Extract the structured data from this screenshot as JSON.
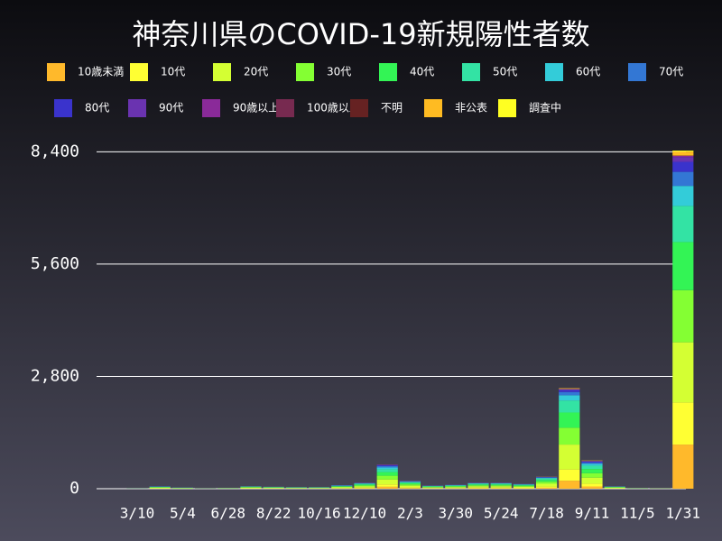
{
  "chart_data": {
    "type": "bar",
    "stacked": true,
    "title": "神奈川県のCOVID-19新規陽性者数",
    "categories": [
      null,
      "3/10",
      null,
      "5/4",
      null,
      "6/28",
      null,
      "8/22",
      null,
      "10/16",
      null,
      "12/10",
      null,
      "2/3",
      null,
      "3/30",
      null,
      "5/24",
      null,
      "7/18",
      null,
      "9/11",
      null,
      "11/5",
      null,
      "1/31"
    ],
    "series": [
      {
        "name": "10歳未満",
        "color": "#ffb92b",
        "values": [
          0,
          0,
          5,
          2,
          1,
          2,
          5,
          4,
          3,
          3,
          7,
          12,
          48,
          16,
          6,
          8,
          12,
          12,
          10,
          24,
          200,
          56,
          5,
          1,
          1,
          1100
        ]
      },
      {
        "name": "10代",
        "color": "#ffff33",
        "values": [
          0,
          0,
          6,
          3,
          1,
          2,
          6,
          5,
          4,
          4,
          9,
          15,
          60,
          20,
          8,
          10,
          15,
          15,
          12,
          30,
          280,
          70,
          6,
          2,
          1,
          1050
        ]
      },
      {
        "name": "20代",
        "color": "#d4ff33",
        "values": [
          0,
          1,
          12,
          6,
          2,
          4,
          15,
          12,
          8,
          8,
          18,
          30,
          120,
          40,
          16,
          20,
          32,
          32,
          26,
          70,
          620,
          150,
          12,
          3,
          2,
          1500
        ]
      },
      {
        "name": "30代",
        "color": "#84ff33",
        "values": [
          0,
          1,
          10,
          5,
          2,
          3,
          10,
          8,
          7,
          7,
          14,
          24,
          96,
          32,
          13,
          16,
          24,
          24,
          19,
          50,
          420,
          110,
          10,
          2,
          2,
          1300
        ]
      },
      {
        "name": "40代",
        "color": "#33f455",
        "values": [
          0,
          1,
          9,
          5,
          1,
          3,
          9,
          8,
          6,
          6,
          14,
          23,
          90,
          30,
          12,
          15,
          23,
          23,
          18,
          45,
          380,
          105,
          9,
          2,
          1,
          1200
        ]
      },
      {
        "name": "50代",
        "color": "#33e3a4",
        "values": [
          0,
          1,
          7,
          4,
          1,
          2,
          7,
          6,
          5,
          5,
          11,
          18,
          72,
          24,
          10,
          12,
          18,
          18,
          14,
          36,
          300,
          84,
          7,
          2,
          1,
          900
        ]
      },
      {
        "name": "60代",
        "color": "#33ccd9",
        "values": [
          0,
          1,
          4,
          2,
          1,
          1,
          4,
          3,
          3,
          3,
          6,
          10,
          42,
          14,
          6,
          7,
          9,
          9,
          8,
          18,
          130,
          45,
          4,
          1,
          1,
          500
        ]
      },
      {
        "name": "70代",
        "color": "#3377d4",
        "values": [
          0,
          0,
          3,
          1,
          0,
          1,
          2,
          2,
          2,
          2,
          5,
          7,
          36,
          10,
          4,
          5,
          7,
          7,
          8,
          12,
          80,
          30,
          3,
          1,
          0,
          350
        ]
      },
      {
        "name": "80代",
        "color": "#3a33cc",
        "values": [
          0,
          0,
          3,
          1,
          1,
          1,
          1,
          1,
          1,
          1,
          4,
          6,
          24,
          8,
          3,
          4,
          6,
          6,
          3,
          8,
          50,
          28,
          2,
          0,
          0,
          250
        ]
      },
      {
        "name": "90代",
        "color": "#6a33b0",
        "values": [
          0,
          0,
          1,
          1,
          0,
          0,
          0,
          0,
          0,
          0,
          2,
          3,
          10,
          4,
          1,
          2,
          2,
          2,
          1,
          4,
          20,
          12,
          1,
          0,
          0,
          120
        ]
      },
      {
        "name": "90歳以上",
        "color": "#8a2a99",
        "values": [
          0,
          0,
          0,
          0,
          0,
          0,
          0,
          0,
          0,
          0,
          0,
          1,
          4,
          1,
          0,
          0,
          1,
          1,
          0,
          1,
          5,
          3,
          0,
          0,
          0,
          30
        ]
      },
      {
        "name": "100歳以上",
        "color": "#772a50",
        "values": [
          0,
          0,
          0,
          0,
          0,
          0,
          0,
          0,
          0,
          0,
          0,
          0,
          1,
          0,
          0,
          0,
          0,
          0,
          0,
          0,
          1,
          0,
          0,
          0,
          0,
          5
        ]
      },
      {
        "name": "不明",
        "color": "#662222",
        "values": [
          0,
          0,
          0,
          0,
          0,
          0,
          0,
          0,
          0,
          0,
          0,
          0,
          0,
          0,
          0,
          0,
          0,
          0,
          0,
          0,
          0,
          0,
          0,
          0,
          0,
          0
        ]
      },
      {
        "name": "非公表",
        "color": "#ffbb22",
        "values": [
          0,
          0,
          0,
          0,
          0,
          0,
          1,
          1,
          1,
          1,
          0,
          2,
          1,
          2,
          1,
          1,
          2,
          2,
          1,
          3,
          19,
          10,
          1,
          1,
          1,
          100
        ]
      },
      {
        "name": "調査中",
        "color": "#ffff22",
        "values": [
          0,
          0,
          0,
          0,
          0,
          0,
          0,
          0,
          0,
          0,
          0,
          0,
          0,
          0,
          0,
          0,
          0,
          0,
          0,
          0,
          0,
          0,
          0,
          0,
          0,
          25
        ]
      }
    ],
    "ylim": [
      0,
      8700
    ],
    "yticks": [
      0,
      {
        "value": 2800,
        "label": "2,800"
      },
      {
        "value": 5600,
        "label": "5,600"
      },
      {
        "value": 8400,
        "label": "8,400"
      }
    ],
    "grid": true
  }
}
